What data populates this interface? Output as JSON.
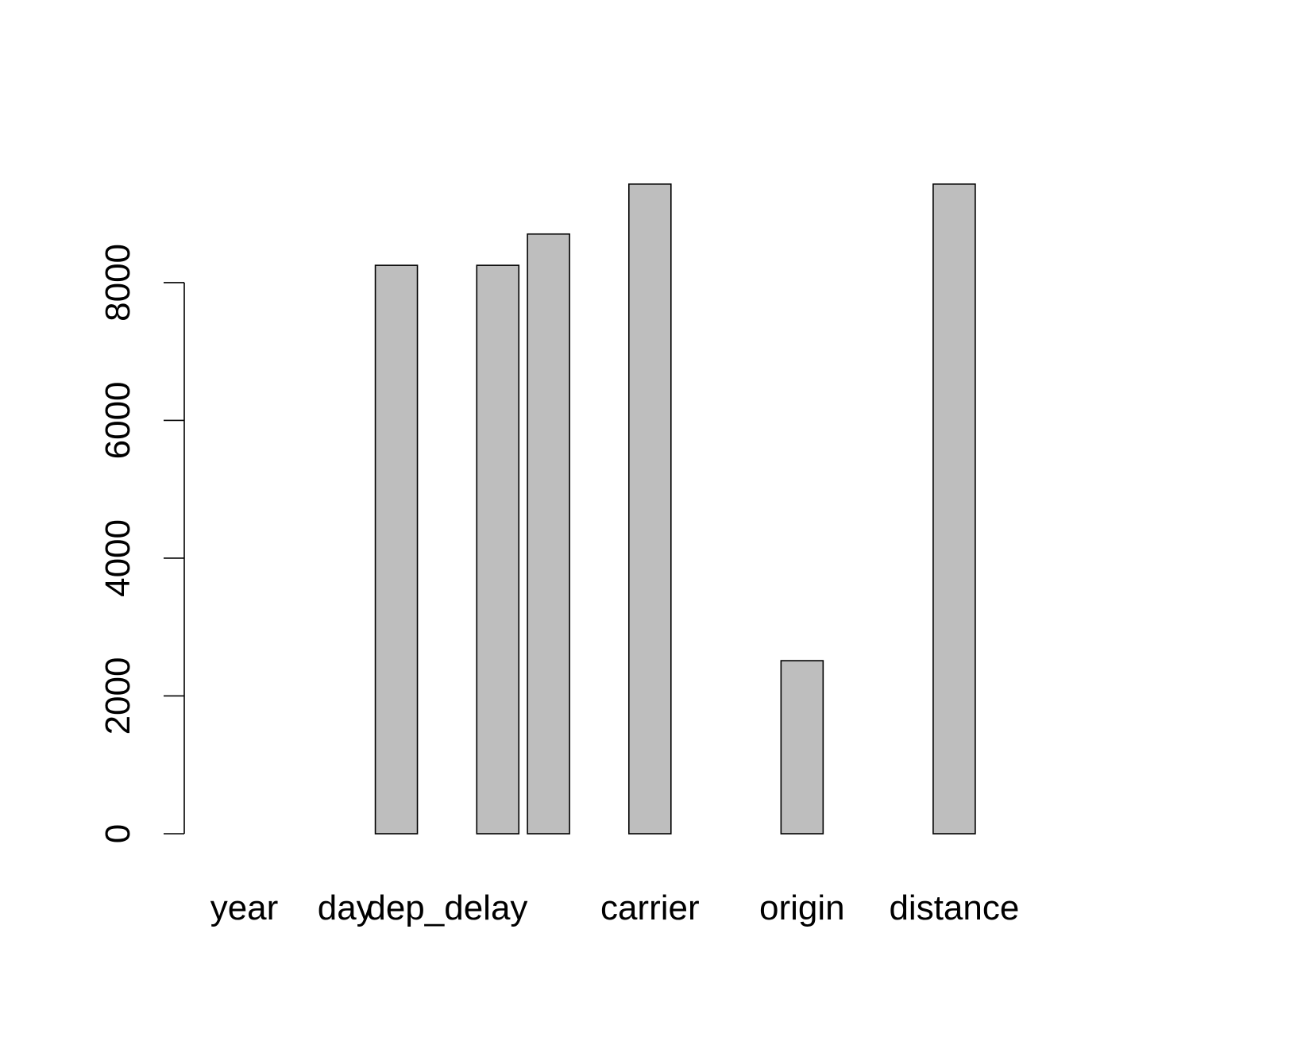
{
  "chart_data": {
    "type": "bar",
    "categories": [
      "year",
      "",
      "day",
      "",
      "dep_delay",
      "",
      "",
      "",
      "carrier",
      "",
      "",
      "origin",
      "",
      "",
      "distance",
      "",
      "",
      "",
      ""
    ],
    "values": [
      0,
      0,
      0,
      8251,
      0,
      8251,
      8705,
      0,
      9430,
      0,
      0,
      2512,
      0,
      0,
      9430,
      0,
      0,
      0,
      0
    ],
    "title": "",
    "xlabel": "",
    "ylabel": "",
    "ylim": [
      0,
      9430
    ],
    "yticks": [
      "0",
      "2000",
      "4000",
      "6000",
      "8000"
    ],
    "bar_color": "#bebebe",
    "border_color": "#000000",
    "grid": false,
    "legend": "none"
  }
}
